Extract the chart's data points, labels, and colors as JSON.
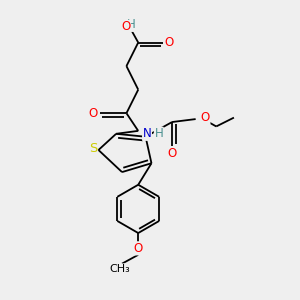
{
  "bg_color": "#efefef",
  "atom_colors": {
    "C": "#000000",
    "O": "#ff0000",
    "N": "#0000cc",
    "S": "#cccc00",
    "H": "#4a9090"
  },
  "font_size": 8.5,
  "xlim": [
    0,
    10
  ],
  "ylim": [
    0,
    10
  ],
  "lw": 1.3
}
